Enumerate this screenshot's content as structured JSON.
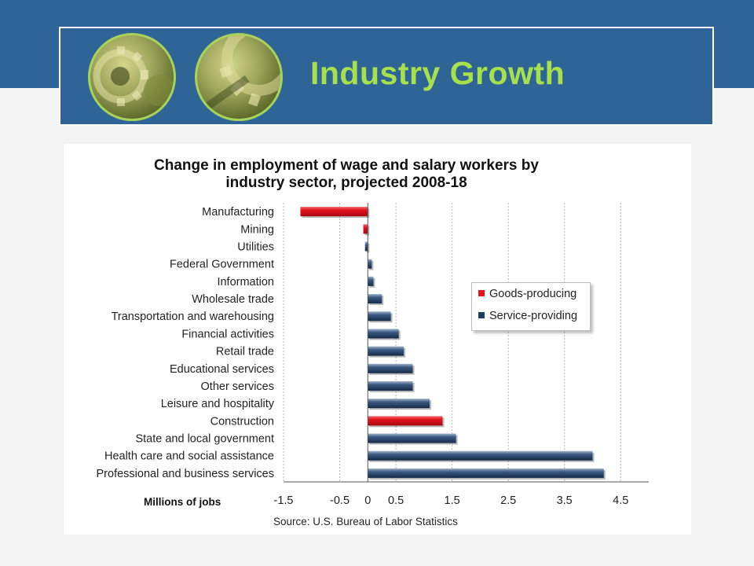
{
  "slide": {
    "title": "Industry Growth"
  },
  "theme": {
    "header_color": "#2f6497",
    "title_color": "#a6e04c",
    "goods_color": "#e2131d",
    "service_color": "#1f3a5f"
  },
  "chart_data": {
    "type": "bar",
    "orientation": "horizontal",
    "title": "Change in employment of wage and salary workers by industry sector, projected 2008-18",
    "xlabel": "Millions of jobs",
    "source": "Source:  U.S. Bureau of Labor Statistics",
    "xlim": [
      -1.5,
      5.0
    ],
    "xticks": [
      "-1.5",
      "-0.5",
      "0",
      "0.5",
      "1.5",
      "2.5",
      "3.5",
      "4.5"
    ],
    "xtick_values": [
      -1.5,
      -0.5,
      0,
      0.5,
      1.5,
      2.5,
      3.5,
      4.5
    ],
    "grid": true,
    "legend_position": "center-right",
    "legend": [
      {
        "name": "Goods-producing",
        "color": "#e2131d"
      },
      {
        "name": "Service-providing",
        "color": "#1f3a5f"
      }
    ],
    "categories": [
      "Manufacturing",
      "Mining",
      "Utilities",
      "Federal Government",
      "Information",
      "Wholesale trade",
      "Transportation and warehousing",
      "Financial activities",
      "Retail trade",
      "Educational services",
      "Other services",
      "Leisure and hospitality",
      "Construction",
      "State and local government",
      "Health care and social assistance",
      "Professional and business services"
    ],
    "values": [
      -1.2,
      -0.08,
      -0.05,
      0.07,
      0.1,
      0.25,
      0.41,
      0.55,
      0.64,
      0.8,
      0.8,
      1.1,
      1.33,
      1.57,
      4.0,
      4.2
    ],
    "groups": [
      "goods",
      "goods",
      "service",
      "service",
      "service",
      "service",
      "service",
      "service",
      "service",
      "service",
      "service",
      "service",
      "goods",
      "service",
      "service",
      "service"
    ]
  }
}
